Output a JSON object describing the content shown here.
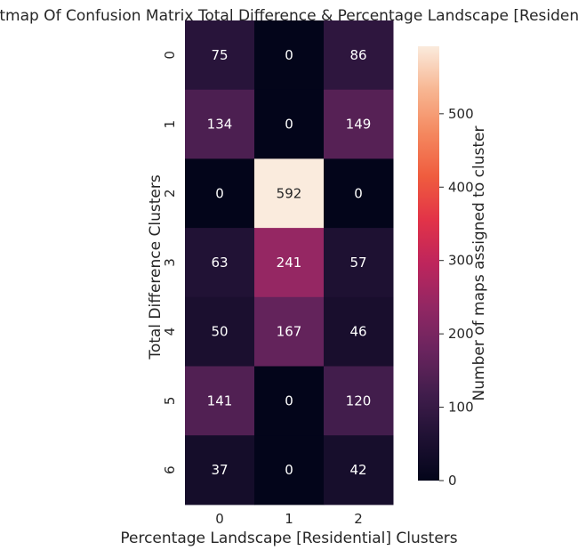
{
  "chart_data": {
    "type": "heatmap",
    "title": "Heatmap Of Confusion Matrix Total Difference & Percentage Landscape [Residential]",
    "xlabel": "Percentage Landscape [Residential] Clusters",
    "ylabel": "Total Difference Clusters",
    "x_categories": [
      "0",
      "1",
      "2"
    ],
    "y_categories": [
      "0",
      "1",
      "2",
      "3",
      "4",
      "5",
      "6"
    ],
    "values": [
      [
        75,
        0,
        86
      ],
      [
        134,
        0,
        149
      ],
      [
        0,
        592,
        0
      ],
      [
        63,
        241,
        57
      ],
      [
        50,
        167,
        46
      ],
      [
        141,
        0,
        120
      ],
      [
        37,
        0,
        42
      ]
    ],
    "colorbar": {
      "label": "Number of maps assigned to cluster",
      "range": [
        0,
        592
      ],
      "ticks": [
        0,
        100,
        200,
        300,
        400,
        500
      ]
    },
    "colormap": "rocket",
    "grid": false
  }
}
